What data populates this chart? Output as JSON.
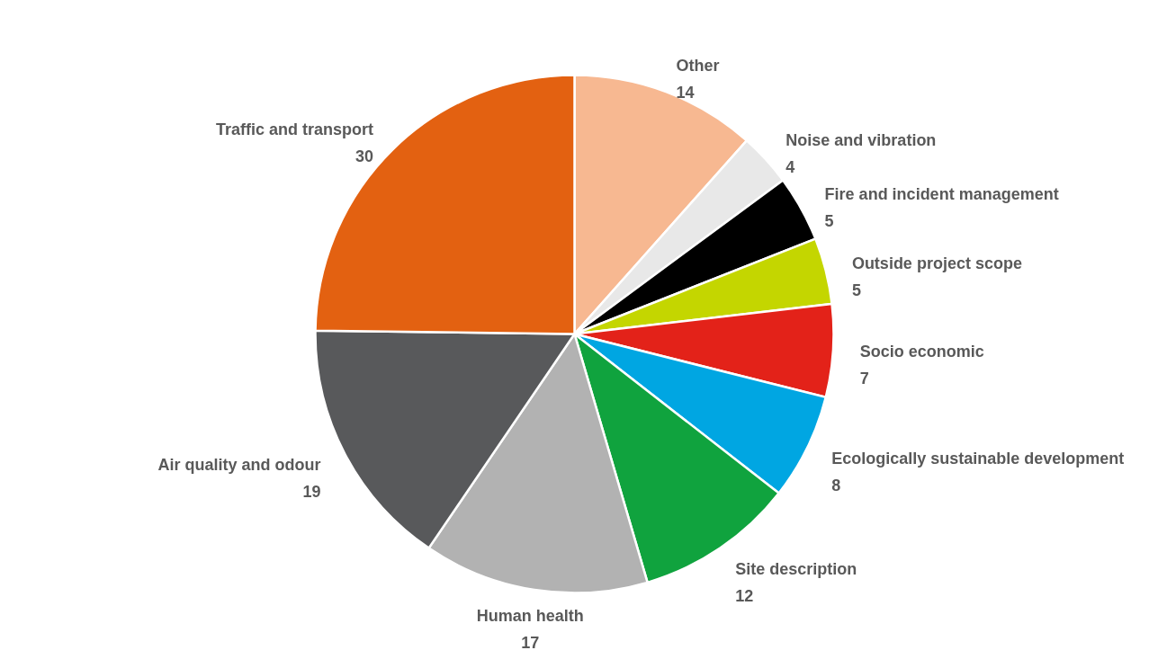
{
  "chart_data": {
    "type": "pie",
    "categories": [
      "Other",
      "Noise and vibration",
      "Fire and incident management",
      "Outside project scope",
      "Socio economic",
      "Ecologically sustainable development",
      "Site description",
      "Human health",
      "Air quality and odour",
      "Traffic and transport"
    ],
    "values": [
      14,
      4,
      5,
      5,
      7,
      8,
      12,
      17,
      19,
      30
    ],
    "colors": [
      "#f7b891",
      "#e8e8e8",
      "#000000",
      "#c4d600",
      "#e32219",
      "#00a6e2",
      "#10a33e",
      "#b2b2b2",
      "#58595b",
      "#e36111"
    ],
    "data_labels": true
  }
}
